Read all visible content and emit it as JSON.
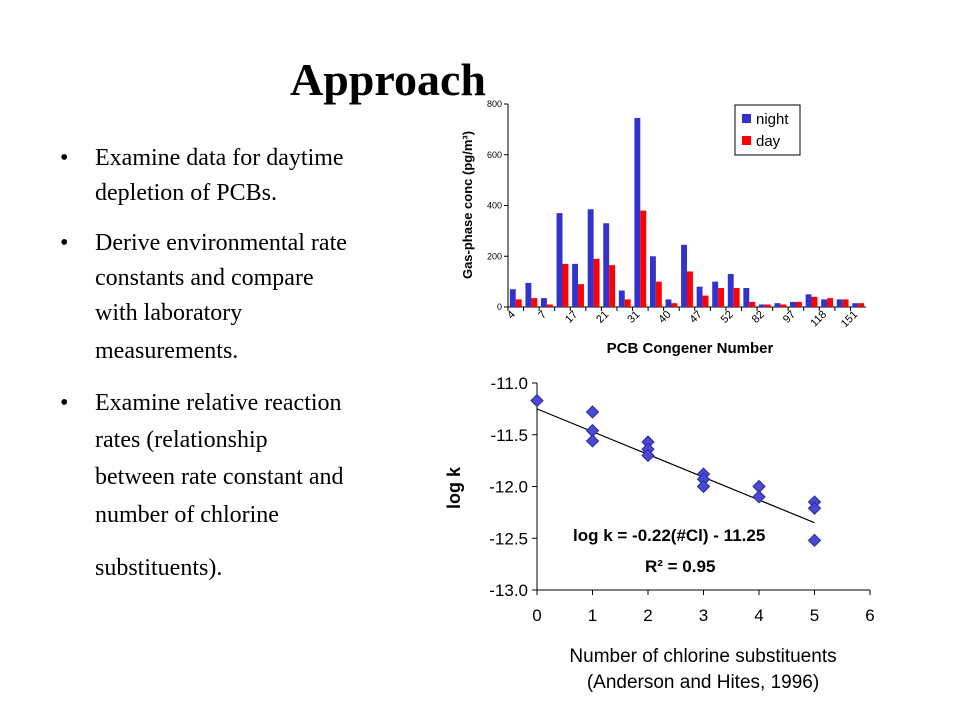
{
  "header": {
    "title": "Approach"
  },
  "bullets": [
    [
      "Examine data for daytime",
      "depletion of PCBs."
    ],
    [
      "Derive environmental rate",
      "constants and compare",
      "with laboratory",
      "measurements."
    ],
    [
      "Examine relative reaction",
      "rates (relationship",
      "between rate constant and",
      "number of chlorine",
      "substituents)."
    ]
  ],
  "chart_data": [
    {
      "type": "bar",
      "y_label": "Gas-phase conc (pg/m³)",
      "x_label": "PCB Congener Number",
      "categories": [
        "4",
        null,
        "7",
        null,
        "17",
        null,
        "21",
        null,
        "31",
        null,
        "40",
        null,
        "47",
        null,
        "52",
        null,
        "82",
        null,
        "97",
        null,
        "118",
        null,
        "151"
      ],
      "series": [
        {
          "name": "night",
          "color": "#3333cc",
          "values": [
            70,
            95,
            35,
            370,
            170,
            385,
            330,
            65,
            745,
            200,
            30,
            245,
            80,
            100,
            130,
            75,
            10,
            15,
            20,
            50,
            30,
            30,
            15
          ]
        },
        {
          "name": "day",
          "color": "#ff0000",
          "values": [
            30,
            35,
            10,
            170,
            90,
            190,
            165,
            30,
            380,
            100,
            15,
            140,
            45,
            75,
            75,
            20,
            10,
            10,
            20,
            40,
            35,
            30,
            15
          ]
        }
      ],
      "ylim": [
        0,
        800
      ],
      "yticks": [
        0,
        200,
        400,
        600,
        800
      ],
      "legend": "top-right"
    },
    {
      "type": "scatter",
      "y_label": "log k",
      "x_label": [
        "Number of chlorine substituents",
        "(Anderson and Hites, 1996)"
      ],
      "x": [
        0,
        1,
        1,
        1,
        2,
        2,
        2,
        3,
        3,
        3,
        4,
        4,
        5,
        5,
        5
      ],
      "values": [
        -11.17,
        -11.28,
        -11.46,
        -11.56,
        -11.57,
        -11.64,
        -11.7,
        -11.88,
        -11.93,
        -12.0,
        -12.0,
        -12.1,
        -12.15,
        -12.21,
        -12.52
      ],
      "color": "#4a4ad0",
      "trendline": {
        "slope": -0.22,
        "intercept": -11.25
      },
      "annotations": [
        "log k = -0.22(#Cl) - 11.25",
        "R² = 0.95"
      ],
      "xlim": [
        0,
        6
      ],
      "xticks": [
        0,
        1,
        2,
        3,
        4,
        5,
        6
      ],
      "ylim": [
        -13,
        -11
      ],
      "yticks": [
        {
          "value": -11,
          "label": "-11.0"
        },
        {
          "value": -11.5,
          "label": "-11.5"
        },
        {
          "value": -12,
          "label": "-12.0"
        },
        {
          "value": -12.5,
          "label": "-12.5"
        },
        {
          "value": -13,
          "label": "-13.0"
        }
      ]
    }
  ]
}
